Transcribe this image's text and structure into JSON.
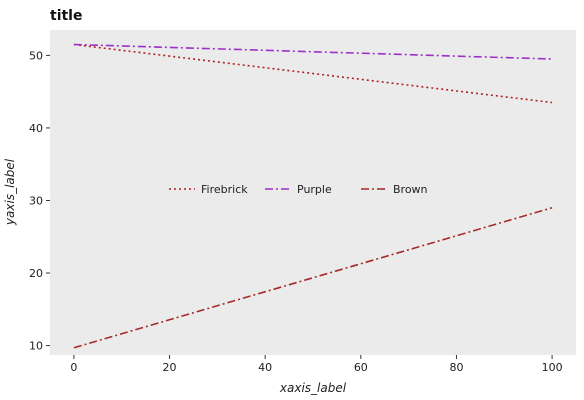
{
  "chart_data": {
    "type": "line",
    "title": "title",
    "xlabel": "xaxis_label",
    "ylabel": "yaxis_label",
    "xlim": [
      -5,
      105
    ],
    "ylim": [
      8.7,
      53.5
    ],
    "x_ticks": [
      0,
      20,
      40,
      60,
      80,
      100
    ],
    "y_ticks": [
      10,
      20,
      30,
      40,
      50
    ],
    "x_tick_labels": [
      "0",
      "20",
      "40",
      "60",
      "80",
      "100"
    ],
    "y_tick_labels": [
      "10",
      "20",
      "30",
      "40",
      "50"
    ],
    "grid": false,
    "legend_position": "center",
    "series": [
      {
        "name": "Firebrick",
        "color": "#b22222",
        "dash": "dotted",
        "x": [
          0,
          100
        ],
        "y": [
          51.5,
          43.5
        ]
      },
      {
        "name": "Purple",
        "color": "#9b30c8",
        "dash": "dashdot",
        "x": [
          0,
          100
        ],
        "y": [
          51.5,
          49.5
        ]
      },
      {
        "name": "Brown",
        "color": "#a52a2a",
        "dash": "dashdot",
        "x": [
          0,
          100
        ],
        "y": [
          9.7,
          29.0
        ]
      }
    ]
  }
}
